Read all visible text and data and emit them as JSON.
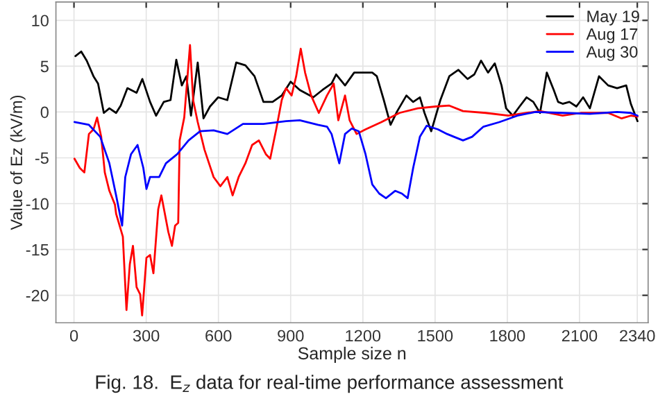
{
  "chart_data": {
    "type": "line",
    "xlabel": "Sample size n",
    "ylabel": "Value of Ez (kV/m)",
    "annotations": [
      "Fig. 18.  E$_{z}$ data for real-time performance assessment"
    ],
    "xlim": [
      -75,
      2385
    ],
    "ylim": [
      -23,
      12
    ],
    "xticks": [
      0,
      300,
      600,
      900,
      1200,
      1500,
      1800,
      2100,
      2340
    ],
    "yticks": [
      -20,
      -15,
      -10,
      -5,
      0,
      5,
      10
    ],
    "grid": true,
    "legend": "top right",
    "line_style": "solid",
    "marker": "none",
    "series": [
      {
        "name": "May 19",
        "color": "#000000",
        "x": [
          6,
          30,
          53,
          81,
          100,
          124,
          147,
          175,
          194,
          222,
          260,
          284,
          316,
          341,
          373,
          401,
          425,
          448,
          467,
          486,
          514,
          538,
          565,
          599,
          637,
          674,
          712,
          750,
          787,
          825,
          863,
          900,
          938,
          994,
          1032,
          1070,
          1089,
          1126,
          1164,
          1239,
          1258,
          1287,
          1315,
          1343,
          1381,
          1409,
          1437,
          1456,
          1484,
          1522,
          1559,
          1597,
          1635,
          1663,
          1691,
          1720,
          1748,
          1776,
          1795,
          1823,
          1851,
          1880,
          1908,
          1936,
          1964,
          1993,
          2011,
          2030,
          2058,
          2087,
          2115,
          2143,
          2181,
          2219,
          2256,
          2294,
          2313,
          2341
        ],
        "values": [
          6.1,
          6.6,
          5.6,
          3.9,
          3.1,
          -0.1,
          0.4,
          -0.1,
          0.7,
          2.6,
          2.1,
          3.6,
          1.1,
          -0.4,
          1.1,
          1.3,
          5.7,
          2.9,
          3.9,
          -0.4,
          5.4,
          -0.7,
          0.6,
          1.6,
          1.3,
          5.4,
          5.1,
          3.9,
          1.1,
          1.1,
          1.8,
          3.3,
          2.4,
          1.6,
          2.4,
          3.1,
          4.1,
          2.9,
          4.3,
          4.3,
          3.9,
          1.3,
          -1.4,
          0.1,
          1.8,
          1.1,
          1.6,
          -0.1,
          -2.1,
          1.3,
          3.9,
          4.6,
          3.6,
          4.1,
          5.6,
          4.3,
          5.3,
          2.9,
          0.4,
          -0.4,
          0.6,
          1.6,
          1.1,
          -0.1,
          4.3,
          2.4,
          1.1,
          0.9,
          1.1,
          0.6,
          1.6,
          0.4,
          3.9,
          2.9,
          2.6,
          2.9,
          0.9,
          -1.0
        ]
      },
      {
        "name": "Aug 17",
        "color": "#ff0000",
        "x": [
          2,
          24,
          43,
          62,
          81,
          96,
          113,
          128,
          147,
          170,
          175,
          203,
          218,
          232,
          245,
          260,
          275,
          283,
          301,
          316,
          330,
          350,
          363,
          392,
          407,
          420,
          433,
          439,
          458,
          482,
          495,
          514,
          542,
          580,
          608,
          637,
          659,
          684,
          712,
          740,
          768,
          797,
          815,
          840,
          863,
          881,
          904,
          923,
          942,
          960,
          985,
          1017,
          1051,
          1079,
          1098,
          1126,
          1145,
          1174,
          1211,
          1277,
          1352,
          1428,
          1503,
          1559,
          1616,
          1710,
          1804,
          1880,
          1936,
          2030,
          2105,
          2219,
          2275,
          2313,
          2341
        ],
        "values": [
          -5.1,
          -6.1,
          -6.6,
          -2.4,
          -1.9,
          -0.6,
          -2.7,
          -6.6,
          -8.6,
          -10.1,
          -11.1,
          -13.6,
          -21.6,
          -16.6,
          -14.6,
          -19.1,
          -19.9,
          -22.2,
          -15.9,
          -15.6,
          -17.6,
          -10.6,
          -9.1,
          -13.1,
          -14.6,
          -12.4,
          -12.1,
          -3.1,
          -0.6,
          7.3,
          1.3,
          -1.1,
          -4.1,
          -7.1,
          -8.1,
          -7.1,
          -9.1,
          -7.1,
          -5.6,
          -3.6,
          -3.1,
          -4.6,
          -5.1,
          -1.9,
          1.3,
          2.6,
          1.8,
          3.9,
          6.9,
          4.3,
          1.8,
          -0.1,
          1.8,
          3.1,
          -0.9,
          1.8,
          -0.9,
          -2.4,
          -1.9,
          -1.1,
          -0.1,
          0.4,
          0.6,
          0.7,
          0.1,
          -0.1,
          -0.4,
          -0.1,
          0.1,
          -0.4,
          -0.1,
          -0.1,
          -0.7,
          -0.4,
          -0.5
        ]
      },
      {
        "name": "Aug 30",
        "color": "#0000ff",
        "x": [
          2,
          62,
          109,
          147,
          175,
          200,
          213,
          237,
          264,
          288,
          301,
          316,
          354,
          382,
          429,
          476,
          524,
          580,
          637,
          702,
          787,
          881,
          938,
          1013,
          1051,
          1070,
          1102,
          1126,
          1154,
          1183,
          1211,
          1239,
          1268,
          1296,
          1334,
          1362,
          1386,
          1409,
          1437,
          1465,
          1512,
          1550,
          1578,
          1616,
          1654,
          1701,
          1767,
          1842,
          1917,
          2030,
          2143,
          2256,
          2313,
          2341
        ],
        "values": [
          -1.1,
          -1.4,
          -2.7,
          -5.6,
          -9.1,
          -12.4,
          -7.1,
          -4.6,
          -3.6,
          -6.1,
          -8.4,
          -7.1,
          -7.1,
          -5.6,
          -4.6,
          -3.1,
          -2.1,
          -2.0,
          -2.4,
          -1.3,
          -1.3,
          -1.0,
          -0.9,
          -1.4,
          -1.6,
          -2.4,
          -5.6,
          -2.4,
          -1.8,
          -2.1,
          -4.6,
          -7.9,
          -8.9,
          -9.4,
          -8.6,
          -8.9,
          -9.4,
          -6.1,
          -2.7,
          -1.5,
          -1.9,
          -2.4,
          -2.7,
          -3.1,
          -2.7,
          -1.6,
          -1.1,
          -0.4,
          0,
          -0.1,
          -0.2,
          0,
          -0.1,
          -0.4
        ]
      }
    ]
  }
}
